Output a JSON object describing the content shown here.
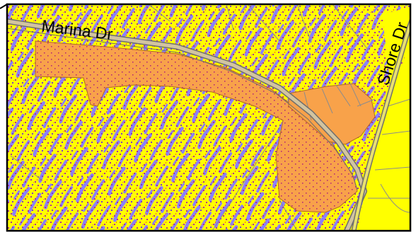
{
  "map": {
    "streets": [
      {
        "id": "marina",
        "name": "Marina Dr"
      },
      {
        "id": "shore",
        "name": "Shore Dr"
      }
    ],
    "colors": {
      "background": "#ffff00",
      "wetland_pattern": "#8a80ff",
      "speckle": "#a0209a",
      "highlight_parcels": "#f8a24a",
      "parcel_lines": "#8c8c8c",
      "road_casing": "#6e6e6e",
      "frame": "#000000"
    }
  }
}
